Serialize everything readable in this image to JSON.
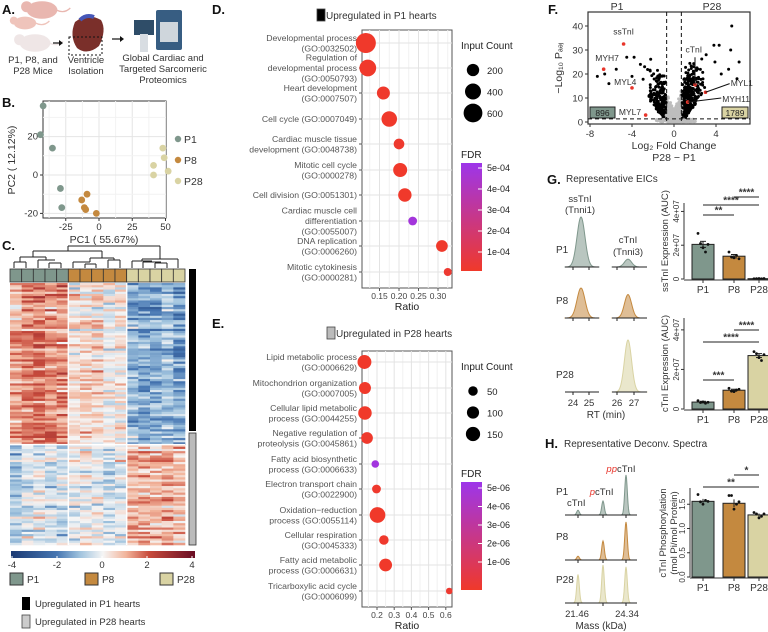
{
  "panel_letters": {
    "A": "A.",
    "B": "B.",
    "C": "C.",
    "D": "D.",
    "E": "E.",
    "F": "F.",
    "G": "G.",
    "H": "H."
  },
  "colors": {
    "P1": "#7f978c",
    "P8": "#c4893f",
    "P28": "#d9d3a3",
    "significant": "#e8352b",
    "fdr_low": "#f0392a",
    "fdr_high": "#9d35ea"
  },
  "panel_a": {
    "mice_label": [
      "P1, P8, and",
      "P28 Mice"
    ],
    "ventricle_label": [
      "Ventricle",
      "Isolation"
    ],
    "proteomics_label": [
      "Global Cardiac and",
      "Targeted Sarcomeric",
      "Proteomics"
    ]
  },
  "chart_data": [
    {
      "id": "B",
      "type": "scatter",
      "title": "",
      "xlabel": "PC1 ( 55.67%)",
      "ylabel": "PC2 ( 12.12%)",
      "xlim": [
        -48,
        56
      ],
      "ylim": [
        -23,
        40
      ],
      "xticks": [
        "-25",
        "0",
        "25",
        "50"
      ],
      "yticks": [
        "-20",
        "0",
        "20"
      ],
      "grid": true,
      "legend_position": "right",
      "series": [
        {
          "name": "P1",
          "points": [
            [
              -42,
              36
            ],
            [
              -44,
              21
            ],
            [
              -35,
              14
            ],
            [
              -29,
              -7
            ],
            [
              -28,
              -17
            ]
          ]
        },
        {
          "name": "P8",
          "points": [
            [
              -9,
              -10
            ],
            [
              -13,
              -13
            ],
            [
              -11,
              -17
            ],
            [
              -10,
              -18
            ],
            [
              -2,
              -20
            ]
          ]
        },
        {
          "name": "P28",
          "points": [
            [
              48,
              14
            ],
            [
              49,
              9
            ],
            [
              41,
              5
            ],
            [
              52,
              2
            ],
            [
              41,
              0
            ]
          ]
        }
      ]
    },
    {
      "id": "C",
      "type": "heatmap",
      "title": "",
      "column_groups": [
        "P1",
        "P8",
        "P28"
      ],
      "columns_per_group": 5,
      "colorbar_ticks": [
        "-4",
        "-2",
        "0",
        "2",
        "4"
      ],
      "color_range": [
        -4,
        4
      ],
      "row_clusters": [
        "Upregulated in P1 hearts",
        "Upregulated in P28 hearts"
      ],
      "legend": [
        "P1",
        "P8",
        "P28"
      ]
    },
    {
      "id": "D",
      "type": "scatter",
      "subtype": "bubble",
      "title": "Upregulated in P1 hearts",
      "xlabel": "Ratio",
      "xticks": [
        "0.15",
        "0.20",
        "0.25",
        "0.30"
      ],
      "size_legend_title": "Input Count",
      "size_legend": [
        "200",
        "400",
        "600"
      ],
      "color_legend_title": "FDR",
      "color_ticks": [
        "5e-04",
        "4e-04",
        "3e-04",
        "2e-04",
        "1e-04"
      ],
      "terms": [
        {
          "label": [
            "Developmental process",
            "(GO:0032502)"
          ],
          "ratio": 0.115,
          "count": 700,
          "fdr": 2e-06
        },
        {
          "label": [
            "Regulation of",
            "developmental process",
            "(GO:0050793)"
          ],
          "ratio": 0.12,
          "count": 450,
          "fdr": 2e-06
        },
        {
          "label": [
            "Heart development",
            "(GO:0007507)"
          ],
          "ratio": 0.16,
          "count": 230,
          "fdr": 5e-06
        },
        {
          "label": [
            "Cell cycle (GO:0007049)"
          ],
          "ratio": 0.175,
          "count": 370,
          "fdr": 2e-06
        },
        {
          "label": [
            "Cardiac muscle tissue",
            "development (GO:0048738)"
          ],
          "ratio": 0.2,
          "count": 130,
          "fdr": 1e-05
        },
        {
          "label": [
            "Mitotic cell cycle",
            "(GO:0000278)"
          ],
          "ratio": 0.203,
          "count": 280,
          "fdr": 3e-06
        },
        {
          "label": [
            "Cell division (GO:0051301)"
          ],
          "ratio": 0.215,
          "count": 250,
          "fdr": 3e-06
        },
        {
          "label": [
            "Cardiac muscle cell",
            "differentiation",
            "(GO:0055007)"
          ],
          "ratio": 0.235,
          "count": 70,
          "fdr": 0.00048
        },
        {
          "label": [
            "DNA replication",
            "(GO:0006260)"
          ],
          "ratio": 0.31,
          "count": 170,
          "fdr": 4e-06
        },
        {
          "label": [
            "Mitotic cytokinesis",
            "(GO:0000281)"
          ],
          "ratio": 0.325,
          "count": 50,
          "fdr": 2e-05
        }
      ]
    },
    {
      "id": "E",
      "type": "scatter",
      "subtype": "bubble",
      "title": "Upregulated in P28 hearts",
      "xlabel": "Ratio",
      "xticks": [
        "0.2",
        "0.3",
        "0.4",
        "0.5",
        "0.6"
      ],
      "size_legend_title": "Input Count",
      "size_legend": [
        "50",
        "100",
        "150"
      ],
      "color_legend_title": "FDR",
      "color_ticks": [
        "5e-06",
        "4e-06",
        "3e-06",
        "2e-06",
        "1e-06"
      ],
      "terms": [
        {
          "label": [
            "Lipid metabolic process",
            "(GO:0006629)"
          ],
          "ratio": 0.127,
          "count": 140,
          "fdr": 1e-08
        },
        {
          "label": [
            "Mitochondrion organization",
            "(GO:0007005)"
          ],
          "ratio": 0.13,
          "count": 95,
          "fdr": 1e-08
        },
        {
          "label": [
            "Cellular lipid metabolic",
            "process (GO:0044255)"
          ],
          "ratio": 0.13,
          "count": 130,
          "fdr": 1e-08
        },
        {
          "label": [
            "Negative regulation of",
            "proteolysis (GO:0045861)"
          ],
          "ratio": 0.142,
          "count": 90,
          "fdr": 5e-08
        },
        {
          "label": [
            "Fatty acid biosynthetic",
            "process (GO:0006633)"
          ],
          "ratio": 0.19,
          "count": 25,
          "fdr": 5.8e-06
        },
        {
          "label": [
            "Electron transport chain",
            "(GO:0022900)"
          ],
          "ratio": 0.197,
          "count": 40,
          "fdr": 1e-07
        },
        {
          "label": [
            "Oxidation−reduction",
            "process (GO:0055114)"
          ],
          "ratio": 0.203,
          "count": 190,
          "fdr": 1e-08
        },
        {
          "label": [
            "Cellular respiration",
            "(GO:0045333)"
          ],
          "ratio": 0.24,
          "count": 50,
          "fdr": 1e-07
        },
        {
          "label": [
            "Fatty acid metabolic",
            "process (GO:0006631)"
          ],
          "ratio": 0.25,
          "count": 115,
          "fdr": 1e-08
        },
        {
          "label": [
            "Tricarboxylic acid cycle",
            "(GO:0006099)"
          ],
          "ratio": 0.62,
          "count": 15,
          "fdr": 2e-07
        }
      ]
    },
    {
      "id": "F",
      "type": "scatter",
      "subtype": "volcano",
      "title": "",
      "group_labels": [
        "P1",
        "P28"
      ],
      "xlabel": "Log₂ Fold Change",
      "xlabel2": "P28 − P1",
      "ylabel": "−Log₁₀ Pₐₔⱼ",
      "xlim": [
        -8.5,
        7.2
      ],
      "ylim": [
        -1,
        45
      ],
      "xticks": [
        "-8",
        "-4",
        "0",
        "4"
      ],
      "yticks": [
        "0",
        "10",
        "20",
        "30",
        "40"
      ],
      "down_count": "896",
      "up_count": "1789",
      "fc_threshold": 0.7,
      "padj_threshold": 1.3,
      "labeled_points": [
        {
          "label": "ssTnI",
          "x": -4.8,
          "y": 32.5
        },
        {
          "label": "MYH7",
          "x": -6.7,
          "y": 22
        },
        {
          "label": "MYL4",
          "x": -4.0,
          "y": 14.2
        },
        {
          "label": "MYL7",
          "x": -2.7,
          "y": 2.9
        },
        {
          "label": "cTnI",
          "x": 2.0,
          "y": 15.5
        },
        {
          "label": "MYL1",
          "x": 3.0,
          "y": 12.4
        },
        {
          "label": "MYH11",
          "x": 1.3,
          "y": 8.3
        }
      ]
    },
    {
      "id": "G-eic",
      "type": "line",
      "title": "Representative EICs",
      "traces": [
        "ssTnI",
        "(Tnni1)",
        "cTnI",
        "(Tnni3)"
      ],
      "rows": [
        "P1",
        "P8",
        "P28"
      ],
      "relative_peak_heights": {
        "ssTnI": [
          1.0,
          0.6,
          0.0
        ],
        "cTnI": [
          0.15,
          0.45,
          1.0
        ]
      },
      "xticks": [
        "24",
        "25",
        "26",
        "27"
      ],
      "xlabel": "RT (min)"
    },
    {
      "id": "G-ssTnI",
      "type": "bar",
      "categories": [
        "P1",
        "P8",
        "P28"
      ],
      "values": [
        20500000,
        13500000,
        200000
      ],
      "errors": [
        1800000,
        1000000,
        100000
      ],
      "points": [
        [
          27000000,
          21000000,
          18500000,
          16000000,
          20500000
        ],
        [
          16000000,
          13000000,
          12500000,
          14000000,
          12000000
        ],
        [
          100000,
          200000,
          300000,
          150000,
          250000
        ]
      ],
      "ylabel": "ssTnI Expression (AUC)",
      "yticks": [
        "0",
        "2e+07",
        "4e+07"
      ],
      "ylim": [
        0,
        45000000
      ],
      "significance": [
        {
          "pair": [
            "P1",
            "P8"
          ],
          "label": "**"
        },
        {
          "pair": [
            "P1",
            "P28"
          ],
          "label": "****"
        },
        {
          "pair": [
            "P8",
            "P28"
          ],
          "label": "****"
        }
      ]
    },
    {
      "id": "G-cTnI",
      "type": "bar",
      "categories": [
        "P1",
        "P8",
        "P28"
      ],
      "values": [
        3500000,
        9500000,
        27000000
      ],
      "errors": [
        400000,
        500000,
        1000000
      ],
      "points": [
        [
          4200000,
          3300000,
          3600000,
          2900000,
          3400000
        ],
        [
          10500000,
          9000000,
          8800000,
          9600000,
          10000000
        ],
        [
          29000000,
          28000000,
          26000000,
          24500000,
          27500000
        ]
      ],
      "ylabel": "cTnI Expression (AUC)",
      "yticks": [
        "0",
        "2e+07",
        "4e+07"
      ],
      "ylim": [
        0,
        45000000
      ],
      "significance": [
        {
          "pair": [
            "P1",
            "P8"
          ],
          "label": "***"
        },
        {
          "pair": [
            "P1",
            "P28"
          ],
          "label": "****"
        },
        {
          "pair": [
            "P8",
            "P28"
          ],
          "label": "****"
        }
      ]
    },
    {
      "id": "H-spectra",
      "type": "line",
      "title": "Representative Deconv. Spectra",
      "rows": [
        "P1",
        "P8",
        "P28"
      ],
      "peak_labels": [
        {
          "prefix": "",
          "name": "cTnI"
        },
        {
          "prefix": "p",
          "name": "cTnI"
        },
        {
          "prefix": "pp",
          "name": "cTnI"
        }
      ],
      "relative_peak_heights": {
        "P1": [
          0.12,
          0.35,
          1.0
        ],
        "P8": [
          0.1,
          0.5,
          1.0
        ],
        "P28": [
          0.75,
          1.0,
          0.95
        ]
      },
      "xticks": [
        "21.46",
        "24.34"
      ],
      "xlabel": "Mass (kDa)"
    },
    {
      "id": "H-bar",
      "type": "bar",
      "categories": [
        "P1",
        "P8",
        "P28"
      ],
      "values": [
        1.56,
        1.52,
        1.28
      ],
      "errors": [
        0.05,
        0.08,
        0.03
      ],
      "points": [
        [
          1.7,
          1.55,
          1.5,
          1.58,
          1.56
        ],
        [
          1.68,
          1.68,
          1.4,
          1.5,
          1.55
        ],
        [
          1.33,
          1.3,
          1.22,
          1.25,
          1.3
        ]
      ],
      "ylabel": [
        "cTnI Phosphorylation",
        "(mol Pi/mol Protein)"
      ],
      "yticks": [
        "0.0",
        "0.5",
        "1.0",
        "1.5"
      ],
      "ylim": [
        0,
        1.85
      ],
      "significance": [
        {
          "pair": [
            "P1",
            "P28"
          ],
          "label": "**"
        },
        {
          "pair": [
            "P8",
            "P28"
          ],
          "label": "*"
        }
      ]
    }
  ]
}
